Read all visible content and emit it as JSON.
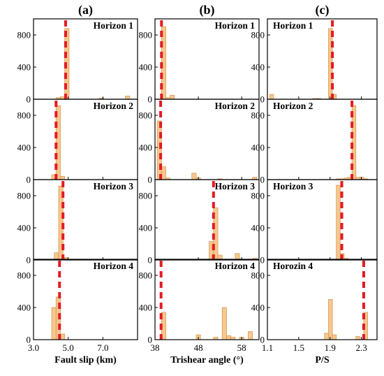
{
  "figure": {
    "column_titles": [
      "(a)",
      "(b)",
      "(c)"
    ],
    "bar_color": "#f8c78d",
    "bar_edge": "#d49a5a",
    "marker_color": "#e31b23"
  },
  "chart_data": [
    {
      "type": "bar",
      "column_title": "(a)",
      "xlabel": "Fault slip (km)",
      "xlim": [
        3.0,
        9.0
      ],
      "xticks": [
        "3.0",
        "5.0",
        "7.0"
      ],
      "xtick_values": [
        3.0,
        5.0,
        7.0
      ],
      "ylim": [
        0,
        1000
      ],
      "yticks": [
        0,
        400,
        800
      ],
      "bin_width": 0.25,
      "panels": [
        {
          "title": "Horizon 1",
          "marker": 4.85,
          "bins": [
            [
              4.3,
              20
            ],
            [
              4.55,
              30
            ],
            [
              4.8,
              880
            ],
            [
              6.8,
              15
            ],
            [
              8.3,
              40
            ]
          ]
        },
        {
          "title": "Horizon 2",
          "marker": 4.3,
          "bins": [
            [
              4.05,
              60
            ],
            [
              4.3,
              920
            ],
            [
              4.55,
              40
            ]
          ]
        },
        {
          "title": "Horizon 3",
          "marker": 4.7,
          "bins": [
            [
              4.2,
              90
            ],
            [
              4.45,
              920
            ],
            [
              4.7,
              30
            ]
          ]
        },
        {
          "title": "Horizon 4",
          "marker": 4.5,
          "bins": [
            [
              4.05,
              400
            ],
            [
              4.3,
              530
            ],
            [
              4.55,
              70
            ]
          ]
        }
      ]
    },
    {
      "type": "bar",
      "column_title": "(b)",
      "xlabel": "Trishear angle (°)",
      "xlim": [
        38,
        62
      ],
      "xticks": [
        "38",
        "48",
        "58"
      ],
      "xtick_values": [
        38,
        48,
        58
      ],
      "ylim": [
        0,
        1000
      ],
      "yticks": [
        0,
        400,
        800
      ],
      "bin_width": 1.0,
      "panels": [
        {
          "title": "Horizon 1",
          "marker": 39.5,
          "bins": [
            [
              39.5,
              900
            ],
            [
              40.5,
              20
            ],
            [
              41.5,
              50
            ]
          ]
        },
        {
          "title": "Horizon 2",
          "marker": 39.3,
          "bins": [
            [
              38.5,
              730
            ],
            [
              39.5,
              160
            ],
            [
              40.5,
              20
            ],
            [
              46.5,
              80
            ],
            [
              47.5,
              20
            ],
            [
              52.5,
              10
            ],
            [
              60.5,
              30
            ]
          ]
        },
        {
          "title": "Horizon 3",
          "marker": 51.5,
          "bins": [
            [
              50.5,
              230
            ],
            [
              51.5,
              650
            ],
            [
              52.5,
              60
            ],
            [
              56.5,
              80
            ],
            [
              60.5,
              20
            ]
          ]
        },
        {
          "title": "Horizon 4",
          "marker": 39.4,
          "bins": [
            [
              39.5,
              340
            ],
            [
              47.5,
              60
            ],
            [
              51.5,
              30
            ],
            [
              53.5,
              400
            ],
            [
              54.5,
              50
            ],
            [
              55.5,
              30
            ],
            [
              57.5,
              30
            ],
            [
              59.5,
              100
            ]
          ]
        }
      ]
    },
    {
      "type": "bar",
      "column_title": "(c)",
      "xlabel": "P/S",
      "xlim": [
        1.1,
        2.5
      ],
      "xticks": [
        "1.1",
        "1.5",
        "1.9",
        "2.3"
      ],
      "xtick_values": [
        1.1,
        1.5,
        1.9,
        2.3
      ],
      "ylim": [
        0,
        1000
      ],
      "yticks": [
        0,
        400,
        800
      ],
      "bin_width": 0.05,
      "panels": [
        {
          "title": "Horizon 1",
          "marker": 1.93,
          "bins": [
            [
              1.13,
              60
            ],
            [
              1.68,
              10
            ],
            [
              1.73,
              10
            ],
            [
              1.88,
              880
            ],
            [
              1.93,
              60
            ]
          ]
        },
        {
          "title": "Horizon 2",
          "marker": 2.18,
          "bins": [
            [
              1.98,
              10
            ],
            [
              2.03,
              10
            ],
            [
              2.08,
              20
            ],
            [
              2.13,
              30
            ],
            [
              2.18,
              920
            ],
            [
              2.23,
              30
            ],
            [
              2.28,
              30
            ],
            [
              2.33,
              10
            ]
          ]
        },
        {
          "title": "Horizon 3",
          "marker": 2.05,
          "bins": [
            [
              1.98,
              930
            ],
            [
              2.03,
              80
            ],
            [
              2.08,
              20
            ]
          ]
        },
        {
          "title": "Horozin 4",
          "marker": 2.33,
          "bins": [
            [
              1.83,
              80
            ],
            [
              1.88,
              500
            ],
            [
              1.93,
              60
            ],
            [
              2.23,
              40
            ],
            [
              2.33,
              340
            ]
          ]
        }
      ]
    }
  ]
}
